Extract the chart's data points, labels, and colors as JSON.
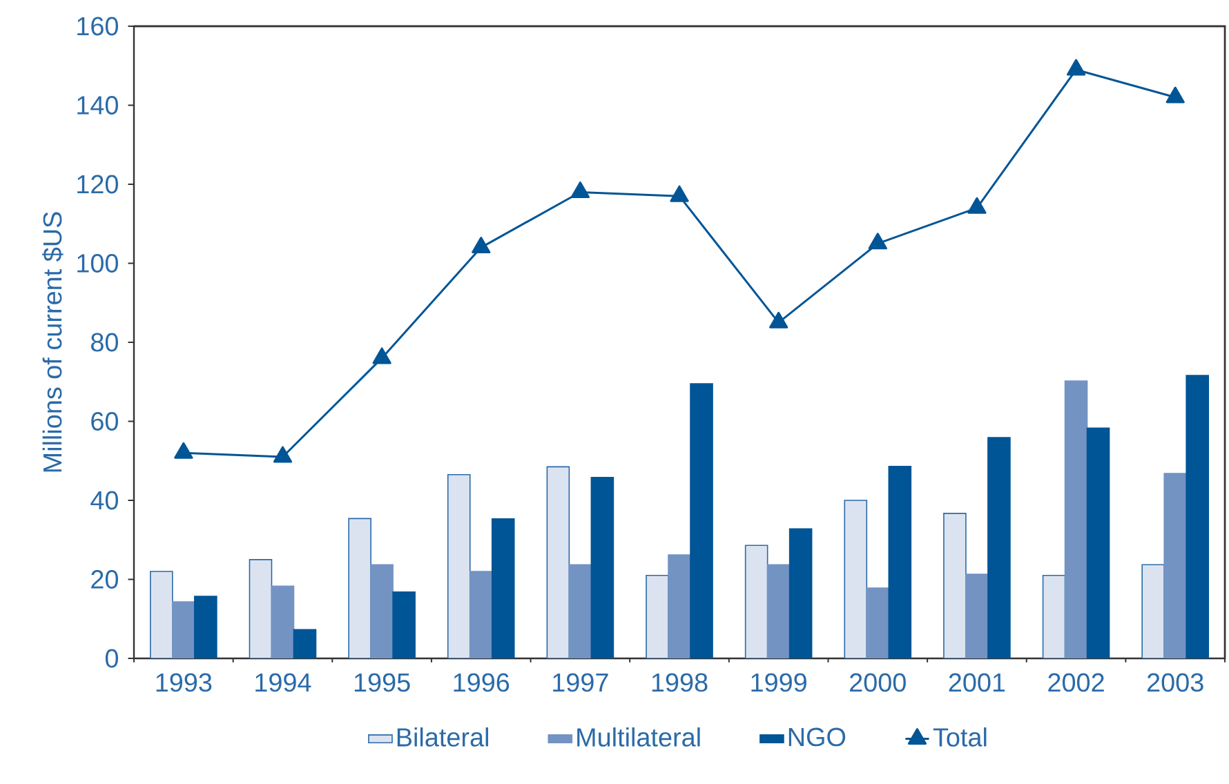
{
  "chart_data": {
    "type": "bar",
    "ylabel": "Millions of current $US",
    "categories": [
      "1993",
      "1994",
      "1995",
      "1996",
      "1997",
      "1998",
      "1999",
      "2000",
      "2001",
      "2002",
      "2003"
    ],
    "ylim": [
      0,
      160
    ],
    "yticks": [
      0,
      20,
      40,
      60,
      80,
      100,
      120,
      140,
      160
    ],
    "legend": "bottom",
    "grid": false,
    "series": [
      {
        "name": "Bilateral",
        "color": "#dce3f0",
        "values": [
          22,
          25,
          35.4,
          46.5,
          48.5,
          21,
          28.6,
          40,
          36.7,
          21,
          23.7
        ]
      },
      {
        "name": "Multilateral",
        "color": "#7393c3",
        "values": [
          14.3,
          18.3,
          23.7,
          22,
          23.7,
          26.2,
          23.7,
          17.8,
          21.3,
          70.2,
          46.8
        ]
      },
      {
        "name": "NGO",
        "color": "#005596",
        "values": [
          15.7,
          7.3,
          16.8,
          35.3,
          45.8,
          69.5,
          32.8,
          48.6,
          55.9,
          58.3,
          71.6
        ]
      },
      {
        "name": "Total",
        "color": "#005596",
        "type": "line",
        "marker": "triangle",
        "values": [
          52,
          51,
          76,
          104,
          118,
          117,
          85,
          105,
          114,
          149,
          142
        ]
      }
    ]
  }
}
